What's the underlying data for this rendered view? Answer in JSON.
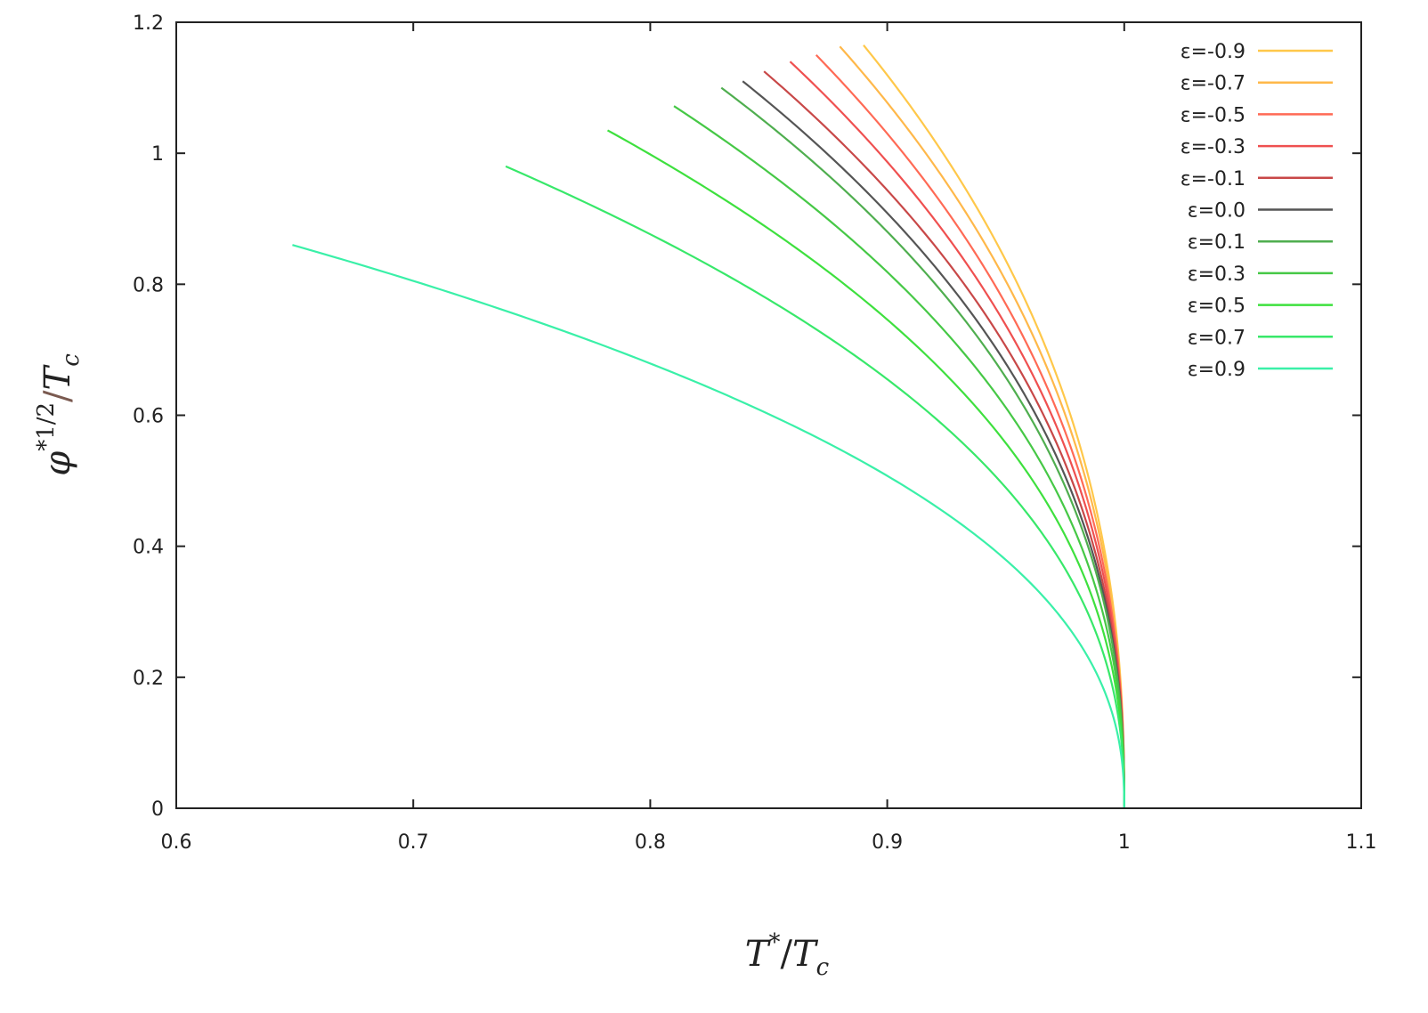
{
  "chart_data": {
    "type": "line",
    "xlabel": {
      "main": "T",
      "sup": "*",
      "sep": "/",
      "main2": "T",
      "sub": "c"
    },
    "ylabel": {
      "main": "φ",
      "sup": "*1/2",
      "sep": "/",
      "main2": "T",
      "sub": "c"
    },
    "xlim": [
      0.6,
      1.1
    ],
    "ylim": [
      0,
      1.2
    ],
    "xticks": [
      "0.6",
      "0.7",
      "0.8",
      "0.9",
      "1",
      "1.1"
    ],
    "yticks": [
      "0",
      "0.2",
      "0.4",
      "0.6",
      "0.8",
      "1",
      "1.2"
    ],
    "grid": false,
    "legend_position": "top-right",
    "series": [
      {
        "name": "ε=-0.9",
        "color": "#ffc84a",
        "x_start": 0.89,
        "y_max": 1.165
      },
      {
        "name": "ε=-0.7",
        "color": "#ffb84a",
        "x_start": 0.88,
        "y_max": 1.163
      },
      {
        "name": "ε=-0.5",
        "color": "#ff6a55",
        "x_start": 0.87,
        "y_max": 1.15
      },
      {
        "name": "ε=-0.3",
        "color": "#ef5050",
        "x_start": 0.859,
        "y_max": 1.14
      },
      {
        "name": "ε=-0.1",
        "color": "#c84848",
        "x_start": 0.848,
        "y_max": 1.125
      },
      {
        "name": "ε=0.0",
        "color": "#555555",
        "x_start": 0.839,
        "y_max": 1.11
      },
      {
        "name": "ε=0.1",
        "color": "#4fae4f",
        "x_start": 0.83,
        "y_max": 1.1
      },
      {
        "name": "ε=0.3",
        "color": "#46c846",
        "x_start": 0.81,
        "y_max": 1.072
      },
      {
        "name": "ε=0.5",
        "color": "#3ee03e",
        "x_start": 0.782,
        "y_max": 1.035
      },
      {
        "name": "ε=0.7",
        "color": "#38e86a",
        "x_start": 0.739,
        "y_max": 0.98
      },
      {
        "name": "ε=0.9",
        "color": "#3af0a8",
        "x_start": 0.649,
        "y_max": 0.86
      }
    ]
  }
}
